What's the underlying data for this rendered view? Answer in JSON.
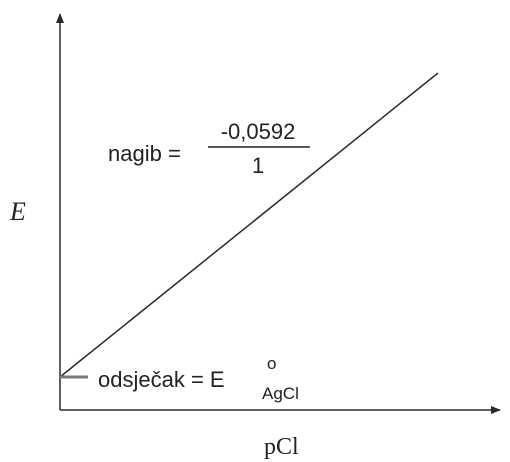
{
  "chart_data": {
    "type": "line",
    "xlabel": "pCl",
    "ylabel": "E",
    "series": [
      {
        "x": [
          0,
          1
        ],
        "y": [
          0,
          1
        ]
      }
    ],
    "annotations": {
      "slope_label": "nagib =",
      "slope_numerator": "-0,0592",
      "slope_denominator": "1",
      "intercept_label": "odsječak = E",
      "intercept_superscript": "o",
      "intercept_subscript": "AgCl"
    },
    "grid": false
  },
  "colors": {
    "axis": "#2a2a2a",
    "line": "#2a2a2a",
    "intercept_tick": "#7a7a7a",
    "text": "#222222"
  }
}
